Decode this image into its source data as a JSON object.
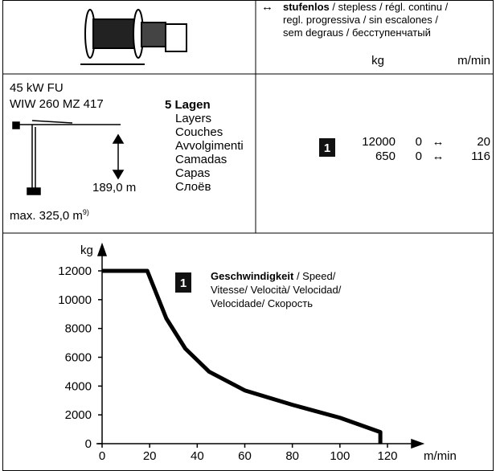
{
  "header": {
    "arrow": "↔",
    "speed_bold": "stufenlos",
    "speed_lines": [
      "/ stepless / régl. continu /",
      "regl. progressiva / sin escalones /",
      "sem degraus / бесступенчатый"
    ],
    "col_load": "kg",
    "col_speed": "m/min"
  },
  "specs": {
    "motor": "45 kW FU",
    "winch": "WIW 260 MZ 417",
    "height": "189,0 m",
    "max_prefix": "max. 325,0 m",
    "max_note": "9)",
    "layers_bold": "5 Lagen",
    "layers": [
      "Layers",
      "Couches",
      "Avvolgimenti",
      "Camadas",
      "Capas",
      "Слоёв"
    ],
    "badge": "1",
    "rows": [
      [
        "12000",
        "0",
        "↔",
        "20"
      ],
      [
        "650",
        "0",
        "↔",
        "116"
      ]
    ]
  },
  "chart_data": {
    "type": "line",
    "y_label": "kg",
    "x_label": "m/min",
    "x": [
      0,
      19,
      27,
      35,
      45,
      60,
      80,
      100,
      117,
      117
    ],
    "series": [
      {
        "name": "1",
        "color": "#000000",
        "values": [
          12000,
          12000,
          8700,
          6600,
          5000,
          3700,
          2700,
          1800,
          800,
          0
        ]
      }
    ],
    "legend_bold": "Geschwindigkeit",
    "legend_lines": [
      "/ Speed/",
      "Vitesse/ Velocità/ Velocidad/",
      "Velocidade/ Скорость"
    ],
    "xlim": [
      0,
      120
    ],
    "ylim": [
      0,
      12000
    ],
    "xticks": [
      0,
      20,
      40,
      60,
      80,
      100,
      120
    ],
    "yticks": [
      0,
      2000,
      4000,
      6000,
      8000,
      10000,
      12000
    ]
  }
}
